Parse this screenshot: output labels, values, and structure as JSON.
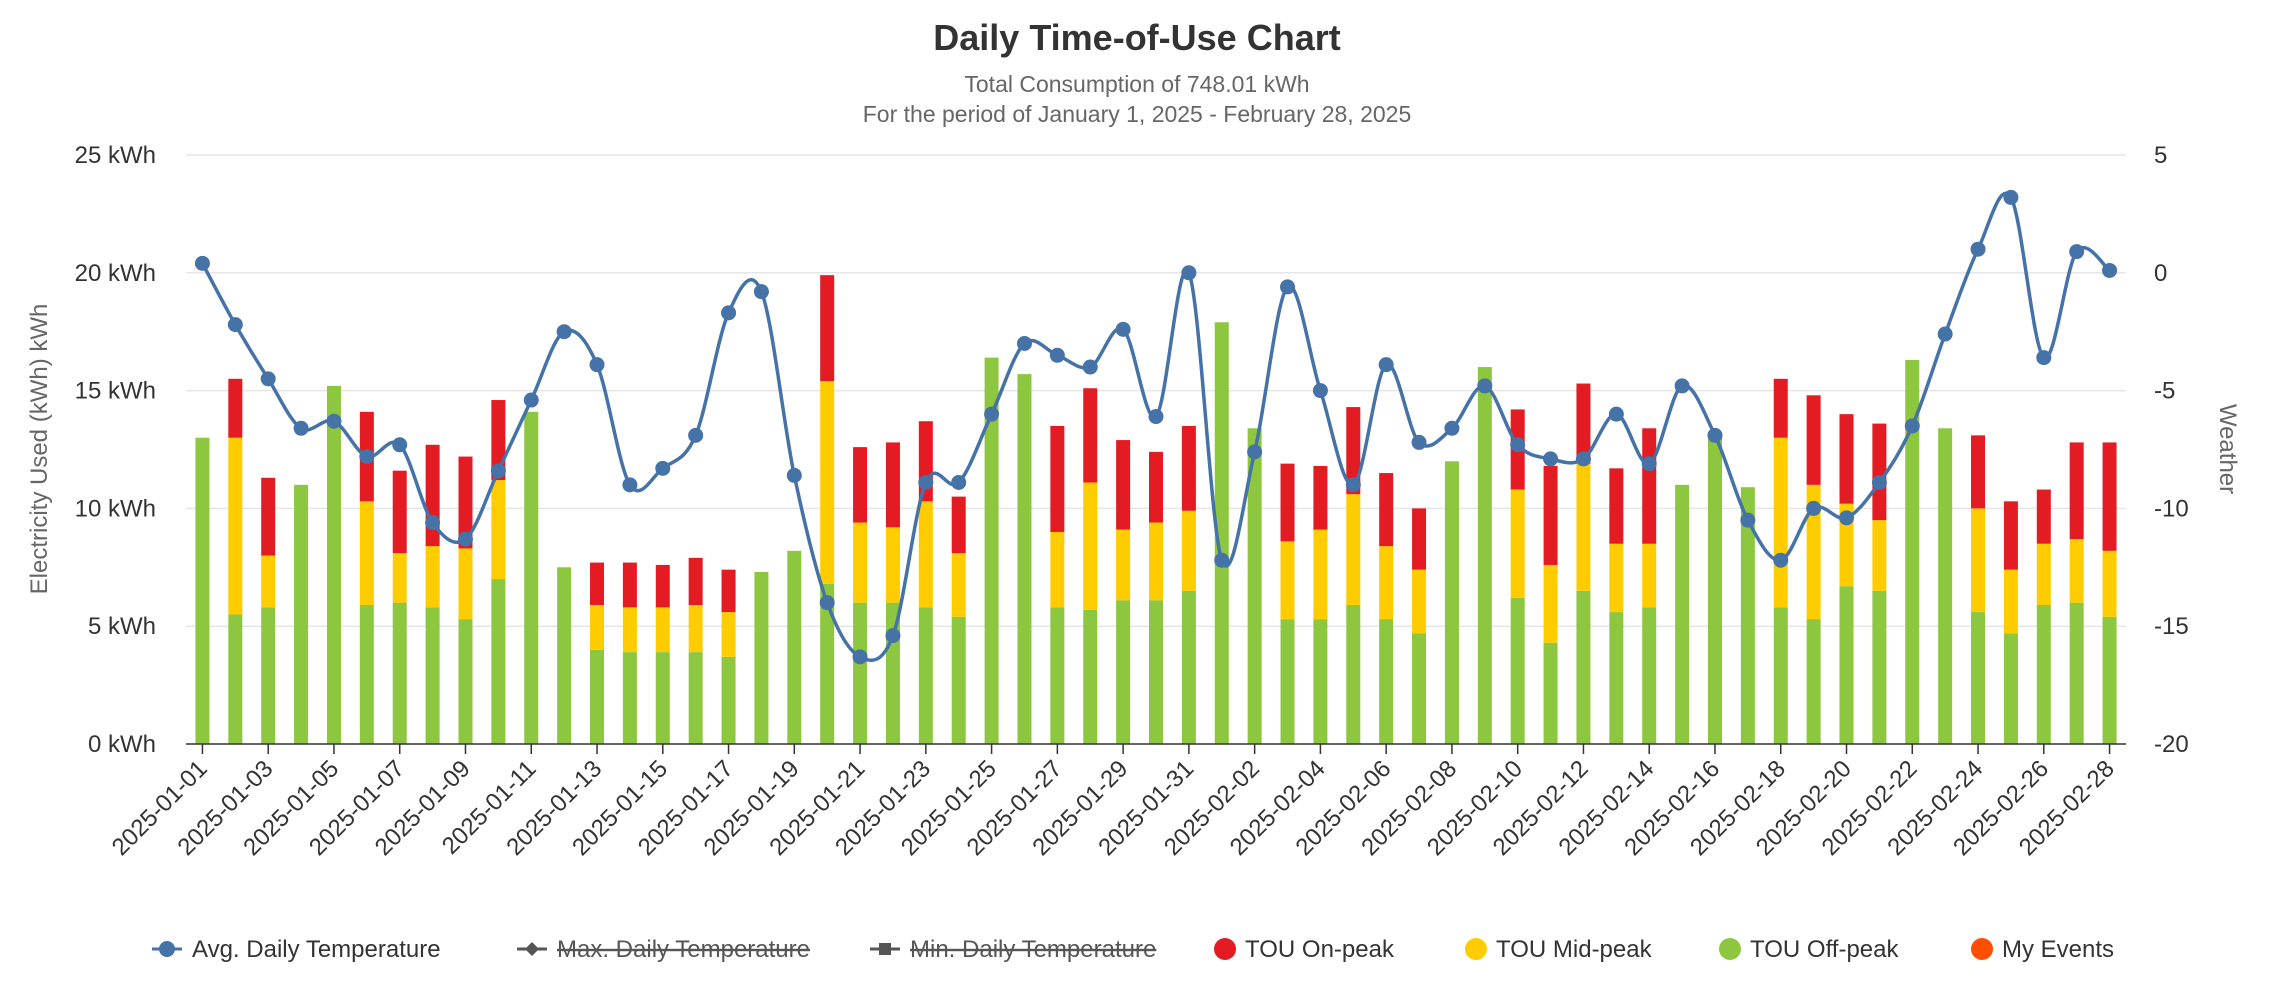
{
  "chart_data": {
    "type": "bar",
    "title": "Daily Time-of-Use Chart",
    "subtitle_lines": [
      "Total Consumption of 748.01 kWh",
      "For the period of January 1, 2025 - February 28, 2025"
    ],
    "ylabel": "Electricity Used (kWh) kWh",
    "y2label": "Weather",
    "ylim": [
      0,
      25
    ],
    "y_ticks": [
      "0 kWh",
      "5 kWh",
      "10 kWh",
      "15 kWh",
      "20 kWh",
      "25 kWh"
    ],
    "y2lim": [
      -20,
      5
    ],
    "y2_ticks": [
      "-20",
      "-15",
      "-10",
      "-5",
      "0",
      "5"
    ],
    "dates": [
      "2025-01-01",
      "2025-01-02",
      "2025-01-03",
      "2025-01-04",
      "2025-01-05",
      "2025-01-06",
      "2025-01-07",
      "2025-01-08",
      "2025-01-09",
      "2025-01-10",
      "2025-01-11",
      "2025-01-12",
      "2025-01-13",
      "2025-01-14",
      "2025-01-15",
      "2025-01-16",
      "2025-01-17",
      "2025-01-18",
      "2025-01-19",
      "2025-01-20",
      "2025-01-21",
      "2025-01-22",
      "2025-01-23",
      "2025-01-24",
      "2025-01-25",
      "2025-01-26",
      "2025-01-27",
      "2025-01-28",
      "2025-01-29",
      "2025-01-30",
      "2025-01-31",
      "2025-02-01",
      "2025-02-02",
      "2025-02-03",
      "2025-02-04",
      "2025-02-05",
      "2025-02-06",
      "2025-02-07",
      "2025-02-08",
      "2025-02-09",
      "2025-02-10",
      "2025-02-11",
      "2025-02-12",
      "2025-02-13",
      "2025-02-14",
      "2025-02-15",
      "2025-02-16",
      "2025-02-17",
      "2025-02-18",
      "2025-02-19",
      "2025-02-20",
      "2025-02-21",
      "2025-02-22",
      "2025-02-23",
      "2025-02-24",
      "2025-02-25",
      "2025-02-26",
      "2025-02-27",
      "2025-02-28"
    ],
    "x_tick_labels": [
      "2025-01-01",
      "2025-01-03",
      "2025-01-05",
      "2025-01-07",
      "2025-01-09",
      "2025-01-11",
      "2025-01-13",
      "2025-01-15",
      "2025-01-17",
      "2025-01-19",
      "2025-01-21",
      "2025-01-23",
      "2025-01-25",
      "2025-01-27",
      "2025-01-29",
      "2025-01-31",
      "2025-02-02",
      "2025-02-04",
      "2025-02-06",
      "2025-02-08",
      "2025-02-10",
      "2025-02-12",
      "2025-02-14",
      "2025-02-16",
      "2025-02-18",
      "2025-02-20",
      "2025-02-22",
      "2025-02-24",
      "2025-02-26",
      "2025-02-28"
    ],
    "series": [
      {
        "name": "TOU Off-peak",
        "color": "#8dc63f",
        "values": [
          13.0,
          5.5,
          5.8,
          11.0,
          15.2,
          5.9,
          6.0,
          5.8,
          5.3,
          7.0,
          14.1,
          7.5,
          4.0,
          3.9,
          3.9,
          3.9,
          3.7,
          7.3,
          8.2,
          6.8,
          6.0,
          6.0,
          5.8,
          5.4,
          16.4,
          15.7,
          5.8,
          5.7,
          6.1,
          6.1,
          6.5,
          17.9,
          13.4,
          5.3,
          5.3,
          5.9,
          5.3,
          4.7,
          12.0,
          16.0,
          6.2,
          4.3,
          6.5,
          5.6,
          5.8,
          11.0,
          13.2,
          10.9,
          5.8,
          5.3,
          6.7,
          6.5,
          16.3,
          13.4,
          5.6,
          4.7,
          5.9,
          6.0,
          5.4
        ]
      },
      {
        "name": "TOU Mid-peak",
        "color": "#ffcc00",
        "values": [
          0,
          7.5,
          2.2,
          0,
          0,
          4.4,
          2.1,
          2.6,
          3.0,
          4.2,
          0,
          0,
          1.9,
          1.9,
          1.9,
          2.0,
          1.9,
          0,
          0,
          8.6,
          3.4,
          3.2,
          4.5,
          2.7,
          0,
          0,
          3.2,
          5.4,
          3.0,
          3.3,
          3.4,
          0,
          0,
          3.3,
          3.8,
          4.7,
          3.1,
          2.7,
          0,
          0,
          4.6,
          3.3,
          5.4,
          2.9,
          2.7,
          0,
          0,
          0,
          7.2,
          5.7,
          3.5,
          3.0,
          0,
          0,
          4.4,
          2.7,
          2.6,
          2.7,
          2.8
        ]
      },
      {
        "name": "TOU On-peak",
        "color": "#e31b23",
        "values": [
          0,
          2.5,
          3.3,
          0,
          0,
          3.8,
          3.5,
          4.3,
          3.9,
          3.4,
          0,
          0,
          1.8,
          1.9,
          1.8,
          2.0,
          1.8,
          0,
          0,
          4.5,
          3.2,
          3.6,
          3.4,
          2.4,
          0,
          0,
          4.5,
          4.0,
          3.8,
          3.0,
          3.6,
          0,
          0,
          3.3,
          2.7,
          3.7,
          3.1,
          2.6,
          0,
          0,
          3.4,
          4.2,
          3.4,
          3.2,
          4.9,
          0,
          0,
          0,
          2.5,
          3.8,
          3.8,
          4.1,
          0,
          0,
          3.1,
          2.9,
          2.3,
          4.1,
          4.6
        ]
      }
    ],
    "temperature": {
      "name": "Avg. Daily Temperature",
      "color": "#4572a7",
      "values": [
        0.4,
        -2.2,
        -4.5,
        -6.6,
        -6.3,
        -7.8,
        -7.3,
        -10.6,
        -11.3,
        -8.4,
        -5.4,
        -2.5,
        -3.9,
        -9.0,
        -8.3,
        -6.9,
        -1.7,
        -0.8,
        -8.6,
        -14.0,
        -16.3,
        -15.4,
        -8.9,
        -8.9,
        -6.0,
        -3.0,
        -3.5,
        -4.0,
        -2.4,
        -6.1,
        0.0,
        -12.2,
        -7.6,
        -0.6,
        -5.0,
        -9.0,
        -3.9,
        -7.2,
        -6.6,
        -4.8,
        -7.3,
        -7.9,
        -7.9,
        -6.0,
        -8.1,
        -4.8,
        -6.9,
        -10.5,
        -12.2,
        -10.0,
        -10.4,
        -8.9,
        -6.5,
        -2.6,
        1.0,
        3.2,
        -3.6,
        0.9,
        0.1
      ]
    },
    "legend": [
      {
        "name": "Avg. Daily Temperature",
        "symbol": "line-circle",
        "color": "#4572a7",
        "enabled": true
      },
      {
        "name": "Max. Daily Temperature",
        "symbol": "line-diamond",
        "color": "#555555",
        "enabled": false
      },
      {
        "name": "Min. Daily Temperature",
        "symbol": "line-square",
        "color": "#555555",
        "enabled": false
      },
      {
        "name": "TOU On-peak",
        "symbol": "circle",
        "color": "#e31b23",
        "enabled": true
      },
      {
        "name": "TOU Mid-peak",
        "symbol": "circle",
        "color": "#ffcc00",
        "enabled": true
      },
      {
        "name": "TOU Off-peak",
        "symbol": "circle",
        "color": "#8dc63f",
        "enabled": true
      },
      {
        "name": "My Events",
        "symbol": "circle",
        "color": "#ff4e00",
        "enabled": true
      }
    ]
  }
}
